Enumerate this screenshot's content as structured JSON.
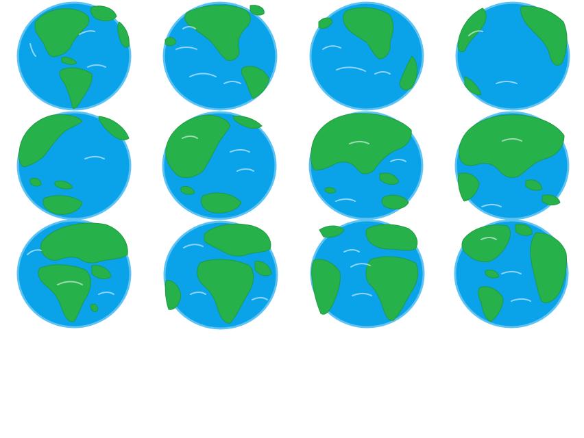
{
  "canvas": {
    "background": "#ffffff"
  },
  "colors": {
    "ocean": "#0aa3ea",
    "ocean_highlight": "#8fd6fa",
    "rim": "#5ec3f2",
    "land": "#27b14b",
    "land_shadow": "#1f9a40",
    "streak": "#ffffff"
  },
  "globes": [
    {
      "id": "globe-1",
      "view": "americas-north-south",
      "row": 1,
      "col": 1
    },
    {
      "id": "globe-2",
      "view": "north-america-pacific",
      "row": 1,
      "col": 2
    },
    {
      "id": "globe-3",
      "view": "north-america-central",
      "row": 1,
      "col": 3
    },
    {
      "id": "globe-4",
      "view": "pacific-ocean",
      "row": 1,
      "col": 4
    },
    {
      "id": "globe-5",
      "view": "pacific-asia-edge",
      "row": 2,
      "col": 1
    },
    {
      "id": "globe-6",
      "view": "asia-australia",
      "row": 2,
      "col": 2
    },
    {
      "id": "globe-7",
      "view": "asia-indian-ocean",
      "row": 2,
      "col": 3
    },
    {
      "id": "globe-8",
      "view": "eurasia",
      "row": 2,
      "col": 4
    },
    {
      "id": "globe-9",
      "view": "africa-europe",
      "row": 3,
      "col": 1
    },
    {
      "id": "globe-10",
      "view": "africa-atlantic",
      "row": 3,
      "col": 2
    },
    {
      "id": "globe-11",
      "view": "atlantic-africa-south-america",
      "row": 3,
      "col": 3
    },
    {
      "id": "globe-12",
      "view": "atlantic-americas-europe",
      "row": 3,
      "col": 4
    }
  ]
}
